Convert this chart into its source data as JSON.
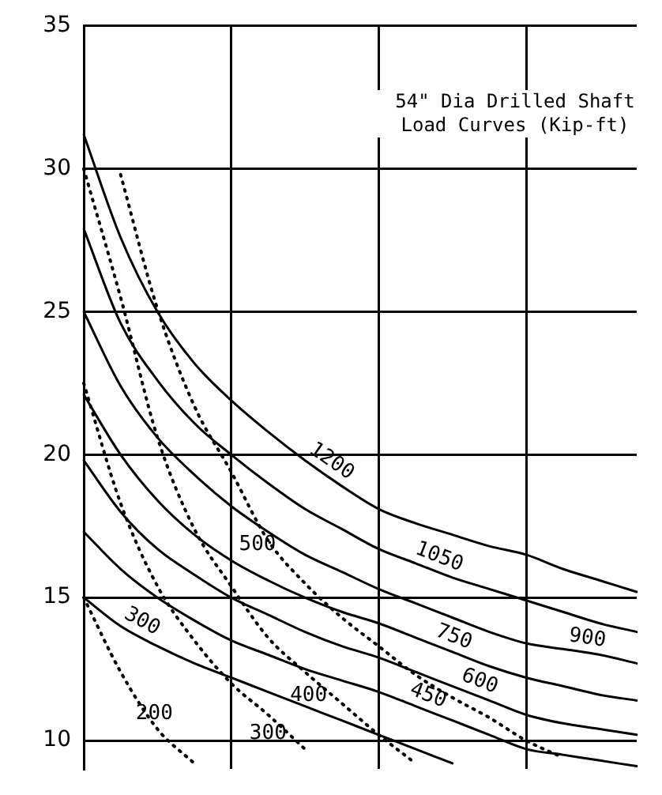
{
  "chart_data": {
    "type": "line",
    "title": "54\" Dia Drilled Shaft Load Curves (Kip-ft)",
    "categories": [
      null,
      null,
      null,
      null,
      null,
      null,
      null,
      null,
      null,
      null,
      null,
      null,
      null,
      null,
      null,
      null
    ],
    "series": [
      {
        "name": "1200",
        "color": "#000000",
        "line_style": "solid",
        "values": [
          31.2,
          27.6,
          25.0,
          23.2,
          21.9,
          20.8,
          19.8,
          18.9,
          18.1,
          17.6,
          17.2,
          16.8,
          16.5,
          16.0,
          15.6,
          15.2
        ]
      },
      {
        "name": "1050",
        "color": "#000000",
        "line_style": "solid",
        "values": [
          27.9,
          24.6,
          22.6,
          21.1,
          20.0,
          19.0,
          18.1,
          17.4,
          16.7,
          16.2,
          15.7,
          15.3,
          14.9,
          14.5,
          14.1,
          13.8
        ]
      },
      {
        "name": "900",
        "color": "#000000",
        "line_style": "solid",
        "values": [
          25.0,
          22.4,
          20.6,
          19.3,
          18.2,
          17.3,
          16.5,
          15.9,
          15.3,
          14.8,
          14.3,
          13.8,
          13.4,
          13.2,
          13.0,
          12.7
        ]
      },
      {
        "name": "750",
        "color": "#000000",
        "line_style": "solid",
        "values": [
          22.1,
          20.0,
          18.4,
          17.2,
          16.3,
          15.6,
          15.0,
          14.5,
          14.1,
          13.6,
          13.1,
          12.6,
          12.2,
          11.9,
          11.6,
          11.4
        ]
      },
      {
        "name": "600",
        "color": "#000000",
        "line_style": "solid",
        "values": [
          19.8,
          18.0,
          16.7,
          15.8,
          15.0,
          14.4,
          13.8,
          13.3,
          12.9,
          12.4,
          11.9,
          11.4,
          10.9,
          10.6,
          10.4,
          10.2
        ]
      },
      {
        "name": "450",
        "color": "#000000",
        "line_style": "solid",
        "values": [
          17.3,
          16.0,
          15.0,
          14.2,
          13.5,
          13.0,
          12.5,
          12.1,
          11.7,
          11.2,
          10.7,
          10.2,
          9.7,
          9.5,
          9.3,
          9.1
        ]
      },
      {
        "name": "300",
        "color": "#000000",
        "line_style": "solid",
        "values": [
          15.0,
          14.0,
          13.3,
          12.7,
          12.2,
          11.7,
          11.2,
          10.7,
          10.2,
          9.7,
          9.2,
          null,
          null,
          null,
          null,
          null
        ]
      },
      {
        "name": "500",
        "color": "#000000",
        "line_style": "dotted",
        "values": [
          null,
          29.8,
          25.1,
          21.7,
          19.4,
          17.0,
          15.5,
          14.3,
          13.3,
          12.3,
          11.5,
          10.8,
          10.0,
          9.4,
          null,
          null
        ]
      },
      {
        "name": "400",
        "color": "#000000",
        "line_style": "dotted",
        "values": [
          30.0,
          25.5,
          20.6,
          17.4,
          15.4,
          13.6,
          12.4,
          11.3,
          10.2,
          9.2,
          null,
          null,
          null,
          null,
          null,
          null
        ]
      },
      {
        "name": "300",
        "color": "#000000",
        "line_style": "dotted",
        "values": [
          22.5,
          18.3,
          15.4,
          13.5,
          12.0,
          10.9,
          9.7,
          null,
          null,
          null,
          null,
          null,
          null,
          null,
          null,
          null
        ]
      },
      {
        "name": "200",
        "color": "#000000",
        "line_style": "dotted",
        "values": [
          15.0,
          12.4,
          10.4,
          9.2,
          null,
          null,
          null,
          null,
          null,
          null,
          null,
          null,
          null,
          null,
          null,
          null
        ]
      }
    ],
    "ylim": [
      9,
      35
    ],
    "yticks": [
      10,
      15,
      20,
      25,
      30,
      35
    ],
    "grid": true,
    "marker": "none",
    "tick_labels": "y"
  }
}
